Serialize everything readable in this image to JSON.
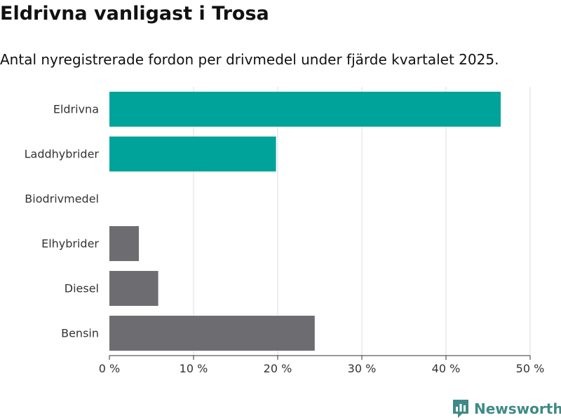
{
  "title": "Eldrivna vanligast i Trosa",
  "subtitle": "Antal nyregistrerade fordon per drivmedel under fjärde kvartalet 2025.",
  "brand": {
    "name": "Newsworthy",
    "color": "#3f8a86"
  },
  "colors": {
    "highlight": "#00a39a",
    "default": "#6d6c71",
    "grid": "#dddddd",
    "axis": "#333333"
  },
  "chart_data": {
    "type": "bar",
    "orientation": "horizontal",
    "categories": [
      "Eldrivna",
      "Laddhybrider",
      "Biodrivmedel",
      "Elhybrider",
      "Diesel",
      "Bensin"
    ],
    "values": [
      46.5,
      19.8,
      0,
      3.5,
      5.8,
      24.4
    ],
    "highlighted": [
      true,
      true,
      true,
      false,
      false,
      false
    ],
    "xlim": [
      0,
      50
    ],
    "ticks": [
      0,
      10,
      20,
      30,
      40,
      50
    ],
    "tick_labels": [
      "0 %",
      "10 %",
      "20 %",
      "30 %",
      "40 %",
      "50 %"
    ],
    "xlabel": "",
    "ylabel": "",
    "grid": true,
    "legend": "none"
  }
}
